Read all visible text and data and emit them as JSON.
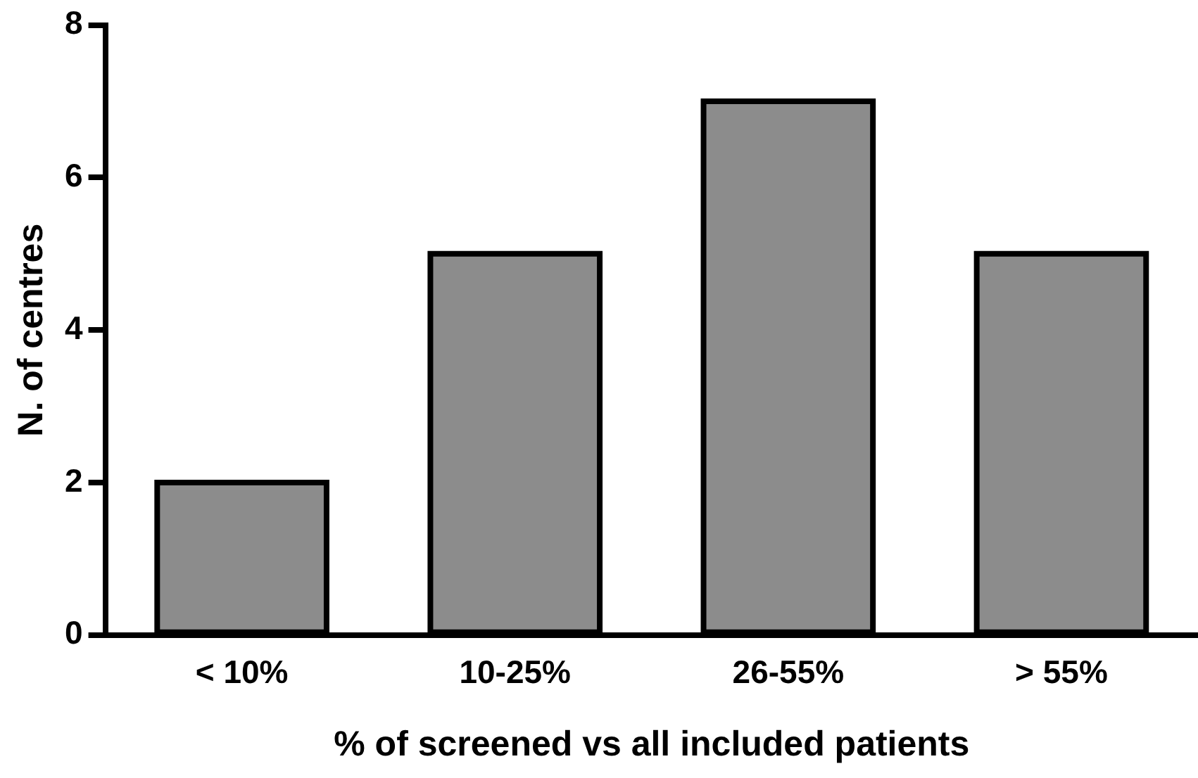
{
  "chart_data": {
    "type": "bar",
    "xlabel": "% of screened vs all included patients",
    "ylabel": "N. of centres",
    "categories": [
      "< 10%",
      "10-25%",
      "26-55%",
      "> 55%"
    ],
    "values": [
      2,
      5,
      7,
      5
    ],
    "color": "#8c8c8c",
    "ylim": [
      0,
      8
    ],
    "yticks": [
      0,
      2,
      4,
      6,
      8
    ],
    "grid": false,
    "legend": false
  }
}
